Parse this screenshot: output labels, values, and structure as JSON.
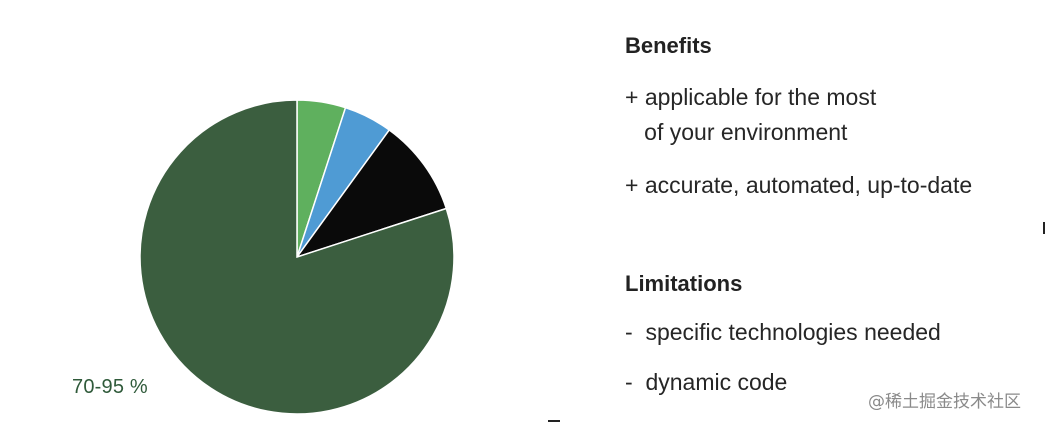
{
  "chart_data": {
    "type": "pie",
    "slices": [
      {
        "label": "70-95 %",
        "value": 80,
        "color": "#3b5e3f"
      },
      {
        "label": "",
        "value": 5,
        "color": "#5fb05e"
      },
      {
        "label": "",
        "value": 5,
        "color": "#4f9bd4"
      },
      {
        "label": "",
        "value": 10,
        "color": "#0a0a0a"
      }
    ],
    "start": "12 o'clock",
    "direction": "clockwise from the light green slice"
  },
  "benefits": {
    "heading": "Benefits",
    "items": [
      "+ applicable for the most\n   of your environment",
      "+ accurate, automated, up-to-date"
    ]
  },
  "limitations": {
    "heading": "Limitations",
    "items": [
      "-  specific technologies needed",
      "-  dynamic code"
    ]
  },
  "watermark": "@稀土掘金技术社区"
}
